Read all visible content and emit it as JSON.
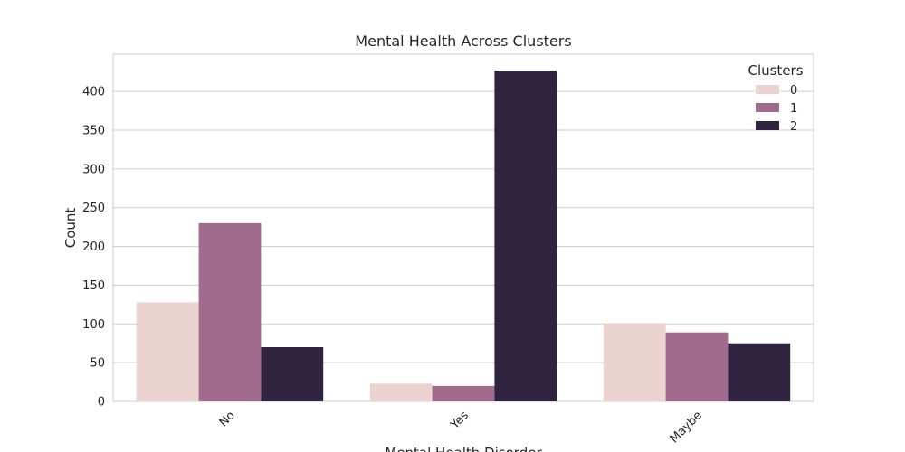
{
  "chart_data": {
    "type": "bar",
    "title": "Mental Health Across Clusters",
    "x_label": "Mental Health Disorder",
    "y_label": "Count",
    "categories": [
      "No",
      "Yes",
      "Maybe"
    ],
    "series": [
      {
        "name": "0",
        "color": "#ead3cf",
        "values": [
          128,
          23,
          101
        ]
      },
      {
        "name": "1",
        "color": "#a06b8c",
        "values": [
          230,
          20,
          89
        ]
      },
      {
        "name": "2",
        "color": "#2f2340",
        "values": [
          70,
          427,
          75
        ]
      }
    ],
    "legend_title": "Clusters",
    "legend": "upper right",
    "ylim": [
      0,
      448
    ],
    "yticks": [
      0,
      50,
      100,
      150,
      200,
      250,
      300,
      350,
      400
    ],
    "grid": true
  }
}
